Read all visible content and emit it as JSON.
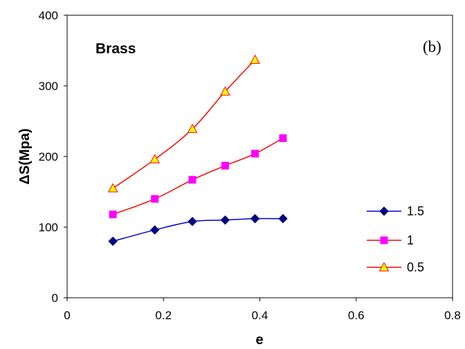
{
  "chart_data": {
    "type": "line",
    "title": "Brass",
    "panel_label": "(b)",
    "xlabel": "e",
    "ylabel": "ΔS(Mpa)",
    "xlim": [
      0,
      0.8
    ],
    "ylim": [
      0,
      400
    ],
    "xticks": [
      0,
      0.2,
      0.4,
      0.6,
      0.8
    ],
    "xtick_labels": [
      "0",
      "0.2",
      "0.4",
      "0.6",
      "0.8"
    ],
    "yticks": [
      0,
      100,
      200,
      300,
      400
    ],
    "ytick_labels": [
      "0",
      "100",
      "200",
      "300",
      "400"
    ],
    "grid": false,
    "legend_position": "right",
    "series": [
      {
        "name": "1.5",
        "color": "#0000CC",
        "marker": "diamond",
        "marker_fill": "#000080",
        "x": [
          0.095,
          0.182,
          0.26,
          0.328,
          0.39,
          0.448
        ],
        "y": [
          80,
          96,
          108,
          110,
          112,
          112
        ]
      },
      {
        "name": "1",
        "color": "#FF0000",
        "marker": "square",
        "marker_fill": "#FF00FF",
        "x": [
          0.095,
          0.182,
          0.26,
          0.328,
          0.39,
          0.448
        ],
        "y": [
          118,
          140,
          167,
          187,
          204,
          226
        ]
      },
      {
        "name": "0.5",
        "color": "#FF0000",
        "marker": "triangle",
        "marker_fill": "#FFFF00",
        "marker_stroke": "#FF0000",
        "x": [
          0.095,
          0.182,
          0.26,
          0.328,
          0.39
        ],
        "y": [
          155,
          196,
          239,
          292,
          337
        ]
      }
    ]
  }
}
